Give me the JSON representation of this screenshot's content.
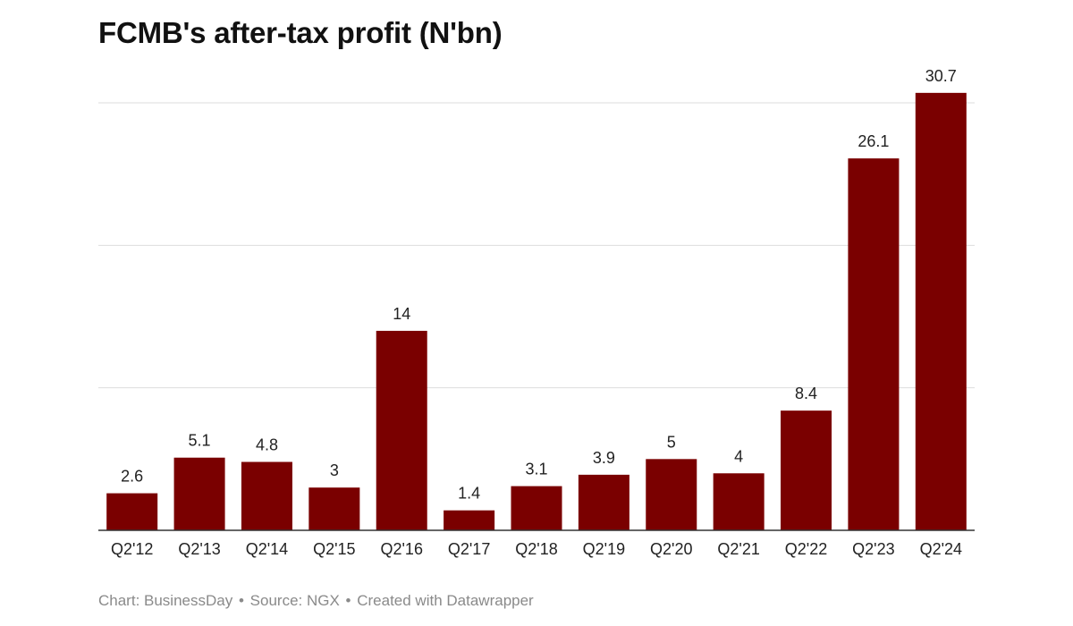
{
  "title": "FCMB's after-tax profit (N'bn)",
  "footer": {
    "chart_credit": "Chart: BusinessDay",
    "source": "Source: NGX",
    "created_with": "Created with Datawrapper",
    "separator": "•"
  },
  "colors": {
    "bar": "#7a0000",
    "grid": "#dddddd",
    "axis": "#333333",
    "label": "#222222"
  },
  "chart_data": {
    "type": "bar",
    "title": "FCMB's after-tax profit (N'bn)",
    "categories": [
      "Q2'12",
      "Q2'13",
      "Q2'14",
      "Q2'15",
      "Q2'16",
      "Q2'17",
      "Q2'18",
      "Q2'19",
      "Q2'20",
      "Q2'21",
      "Q2'22",
      "Q2'23",
      "Q2'24"
    ],
    "values": [
      2.6,
      5.1,
      4.8,
      3,
      14,
      1.4,
      3.1,
      3.9,
      5,
      4,
      8.4,
      26.1,
      30.7
    ],
    "data_labels": [
      "2.6",
      "5.1",
      "4.8",
      "3",
      "14",
      "1.4",
      "3.1",
      "3.9",
      "5",
      "4",
      "8.4",
      "26.1",
      "30.7"
    ],
    "xlabel": "",
    "ylabel": "",
    "ylim": [
      0,
      30
    ],
    "gridlines": [
      10,
      20,
      30
    ],
    "grid": true,
    "legend": "none"
  }
}
